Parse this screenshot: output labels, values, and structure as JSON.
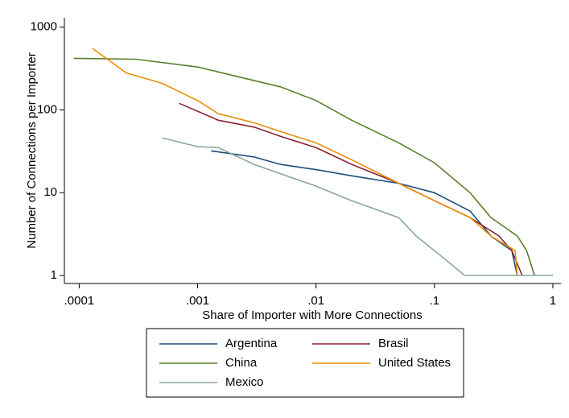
{
  "chart_data": {
    "type": "line",
    "xlabel": "Share of Importer with More Connections",
    "ylabel": "Number of Connections per Importer",
    "xscale": "log",
    "yscale": "log",
    "xlim": [
      7.5e-05,
      1.17
    ],
    "ylim": [
      0.8,
      1300
    ],
    "xticks": [
      {
        "value": 0.0001,
        "label": ".0001"
      },
      {
        "value": 0.001,
        "label": ".001"
      },
      {
        "value": 0.01,
        "label": ".01"
      },
      {
        "value": 0.1,
        "label": ".1"
      },
      1
    ],
    "yticks": [
      1,
      10,
      100,
      1000
    ],
    "grid": false,
    "legend": "bottom",
    "series": [
      {
        "name": "Argentina",
        "color": "#1f4e79",
        "x": [
          0.0013,
          0.003,
          0.005,
          0.01,
          0.02,
          0.05,
          0.1,
          0.2,
          0.3,
          0.45,
          0.5
        ],
        "values": [
          32,
          27,
          22,
          19,
          16,
          13,
          10,
          6,
          3,
          2,
          1
        ]
      },
      {
        "name": "Brasil",
        "color": "#8b2332",
        "x": [
          0.0007,
          0.0015,
          0.003,
          0.005,
          0.01,
          0.02,
          0.05,
          0.1,
          0.2,
          0.35,
          0.45,
          0.55
        ],
        "values": [
          120,
          75,
          62,
          48,
          35,
          22,
          13,
          8,
          5,
          3,
          2,
          1
        ]
      },
      {
        "name": "China",
        "color": "#5a7f2c",
        "x": [
          9e-05,
          0.0003,
          0.001,
          0.002,
          0.005,
          0.01,
          0.02,
          0.05,
          0.1,
          0.2,
          0.3,
          0.5,
          0.6,
          0.7
        ],
        "values": [
          420,
          410,
          330,
          260,
          190,
          130,
          75,
          40,
          23,
          10,
          5,
          3,
          2,
          1
        ]
      },
      {
        "name": "United States",
        "color": "#e8900c",
        "x": [
          0.00013,
          0.00025,
          0.0005,
          0.001,
          0.0015,
          0.003,
          0.005,
          0.01,
          0.02,
          0.05,
          0.1,
          0.2,
          0.3,
          0.48,
          0.5
        ],
        "values": [
          550,
          280,
          210,
          130,
          90,
          70,
          55,
          40,
          25,
          13,
          8,
          5,
          3,
          2,
          1
        ]
      },
      {
        "name": "Mexico",
        "color": "#8aa8a0",
        "x": [
          0.0005,
          0.001,
          0.0015,
          0.003,
          0.005,
          0.01,
          0.02,
          0.05,
          0.07,
          0.1,
          0.18,
          1
        ],
        "values": [
          46,
          36,
          35,
          22,
          17,
          12,
          8,
          5,
          3,
          2,
          1,
          1
        ]
      }
    ]
  }
}
